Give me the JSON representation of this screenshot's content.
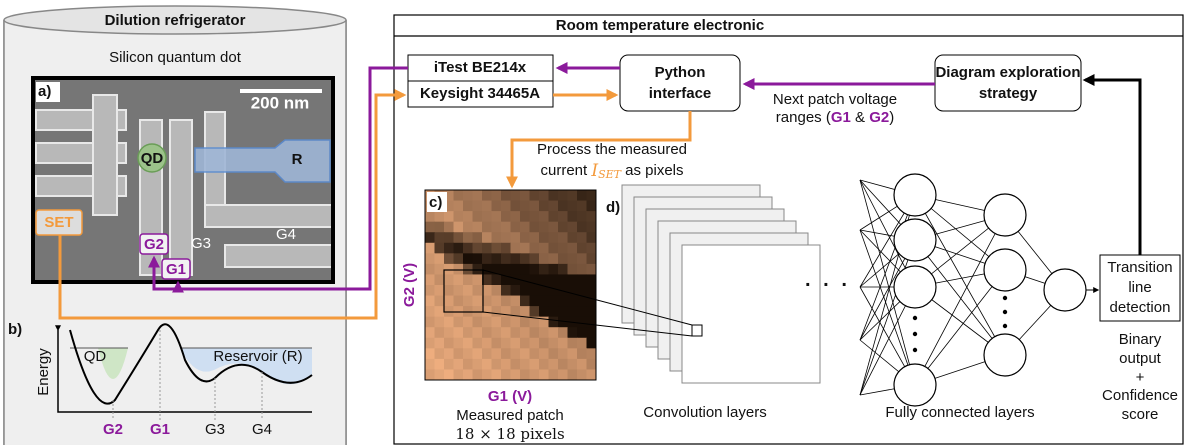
{
  "fridge": {
    "title": "Dilution refrigerator",
    "subtitle": "Silicon quantum dot"
  },
  "sem": {
    "label": "a)",
    "scale": "200 nm",
    "qd": "QD",
    "r": "R",
    "set": "SET",
    "g2": "G2",
    "g3": "G3",
    "g4": "G4",
    "g1": "G1"
  },
  "energy": {
    "label": "b)",
    "qd": "QD",
    "reservoir": "Reservoir (R)",
    "axis": "Energy",
    "gates": [
      "G2",
      "G1",
      "G3",
      "G4"
    ]
  },
  "electronics": {
    "title": "Room temperature electronic",
    "itest": "iTest BE214x",
    "keysight": "Keysight 34465A",
    "python": [
      "Python",
      "interface"
    ],
    "strategy": [
      "Diagram exploration",
      "strategy"
    ]
  },
  "next_patch": {
    "line1": "Next patch voltage",
    "line2": [
      "ranges (",
      "G1",
      " & ",
      "G2",
      ")"
    ]
  },
  "process": {
    "line1": "Process the measured",
    "line2": [
      "current ",
      "I",
      "SET",
      " as pixels"
    ]
  },
  "patch": {
    "label": "c)",
    "ylabel": "G2 (V)",
    "xlabel": "G1 (V)",
    "caption": [
      "Measured patch",
      "18 × 18 pixels"
    ]
  },
  "cnn": {
    "label": "d)",
    "conv": "Convolution layers",
    "fc": "Fully connected layers"
  },
  "output": {
    "detection": [
      "Transition",
      "line",
      "detection"
    ],
    "result": [
      "Binary",
      "output",
      "+",
      "Confidence",
      "score"
    ]
  }
}
